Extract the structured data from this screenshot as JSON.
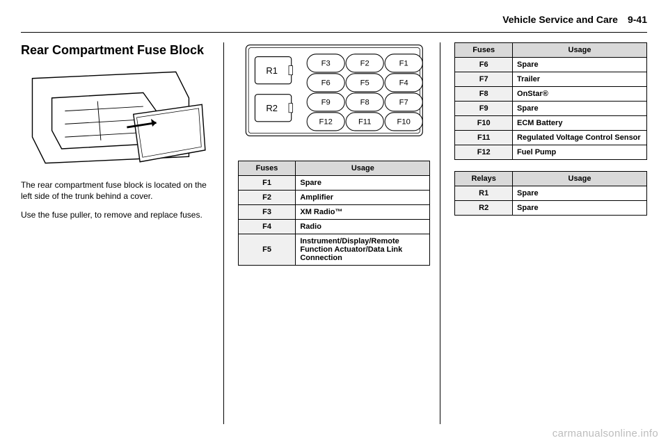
{
  "header": {
    "section_title": "Vehicle Service and Care",
    "page_number": "9-41"
  },
  "col1": {
    "heading": "Rear Compartment Fuse Block",
    "p1": "The rear compartment fuse block is located on the left side of the trunk behind a cover.",
    "p2": "Use the fuse puller, to remove and replace fuses."
  },
  "fuse_diagram": {
    "relay_labels": [
      "R1",
      "R2"
    ],
    "fuse_rows": [
      [
        "F3",
        "F2",
        "F1"
      ],
      [
        "F6",
        "F5",
        "F4"
      ],
      [
        "F9",
        "F8",
        "F7"
      ],
      [
        "F12",
        "F11",
        "F10"
      ]
    ]
  },
  "table1": {
    "head": [
      "Fuses",
      "Usage"
    ],
    "rows": [
      [
        "F1",
        "Spare"
      ],
      [
        "F2",
        "Amplifier"
      ],
      [
        "F3",
        "XM Radio™"
      ],
      [
        "F4",
        "Radio"
      ],
      [
        "F5",
        "Instrument/Display/Remote Function Actuator/Data Link Connection"
      ]
    ]
  },
  "table2": {
    "head": [
      "Fuses",
      "Usage"
    ],
    "rows": [
      [
        "F6",
        "Spare"
      ],
      [
        "F7",
        "Trailer"
      ],
      [
        "F8",
        "OnStar®"
      ],
      [
        "F9",
        "Spare"
      ],
      [
        "F10",
        "ECM Battery"
      ],
      [
        "F11",
        "Regulated Voltage Control Sensor"
      ],
      [
        "F12",
        "Fuel Pump"
      ]
    ]
  },
  "table3": {
    "head": [
      "Relays",
      "Usage"
    ],
    "rows": [
      [
        "R1",
        "Spare"
      ],
      [
        "R2",
        "Spare"
      ]
    ]
  },
  "watermark": "carmanualsonline.info"
}
